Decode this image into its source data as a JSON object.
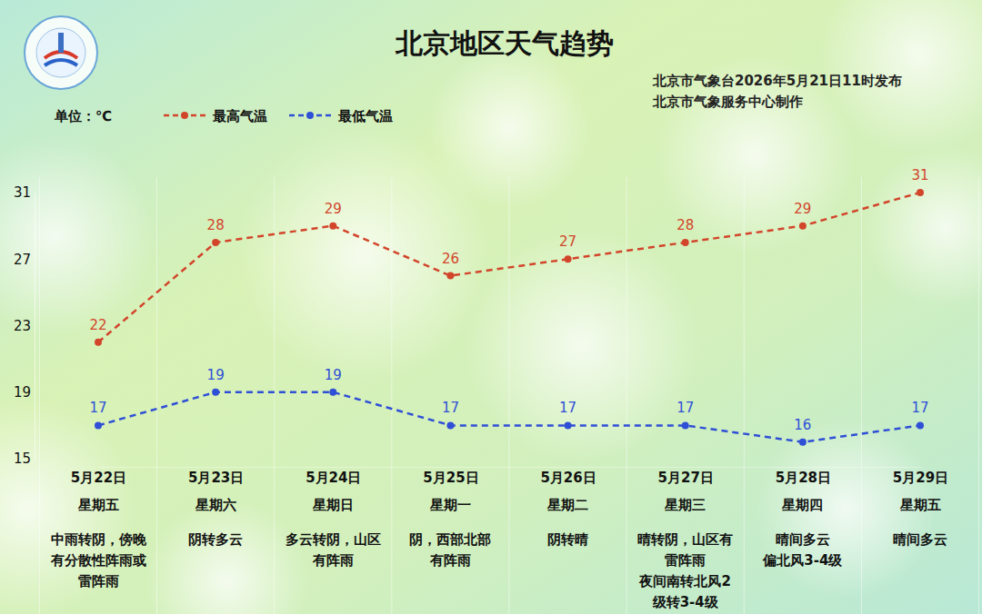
{
  "chart_data": {
    "type": "line",
    "title": "北京地区天气趋势",
    "subtitle": [
      "北京市气象台2026年5月21日11时发布",
      "北京市气象服务中心制作"
    ],
    "ylabel": "单位：℃",
    "categories": [
      "5月22日",
      "5月23日",
      "5月24日",
      "5月25日",
      "5月26日",
      "5月27日",
      "5月28日",
      "5月29日"
    ],
    "weekdays": [
      "星期五",
      "星期六",
      "星期日",
      "星期一",
      "星期二",
      "星期三",
      "星期四",
      "星期五"
    ],
    "descriptions": [
      [
        "中雨转阴，傍晚",
        "有分散性阵雨或",
        "雷阵雨"
      ],
      [
        "阴转多云"
      ],
      [
        "多云转阴，山区",
        "有阵雨"
      ],
      [
        "阴，西部北部",
        "有阵雨"
      ],
      [
        "阴转晴"
      ],
      [
        "晴转阴，山区有",
        "雷阵雨",
        "夜间南转北风2",
        "级转3-4级"
      ],
      [
        "晴间多云",
        "偏北风3-4级"
      ],
      [
        "晴间多云"
      ]
    ],
    "series": [
      {
        "name": "最高气温",
        "color": "#d2452b",
        "values": [
          22,
          28,
          29,
          26,
          27,
          28,
          29,
          31
        ],
        "marker": "circle",
        "line_style": "dashed"
      },
      {
        "name": "最低气温",
        "color": "#2f4fd6",
        "values": [
          17,
          19,
          19,
          17,
          17,
          17,
          16,
          17
        ],
        "marker": "circle",
        "line_style": "dashed"
      }
    ],
    "ylim": [
      15,
      31
    ],
    "yticks": [
      15,
      19,
      23,
      27,
      31
    ],
    "grid": false,
    "legend": "top-left",
    "data_labels": true
  }
}
